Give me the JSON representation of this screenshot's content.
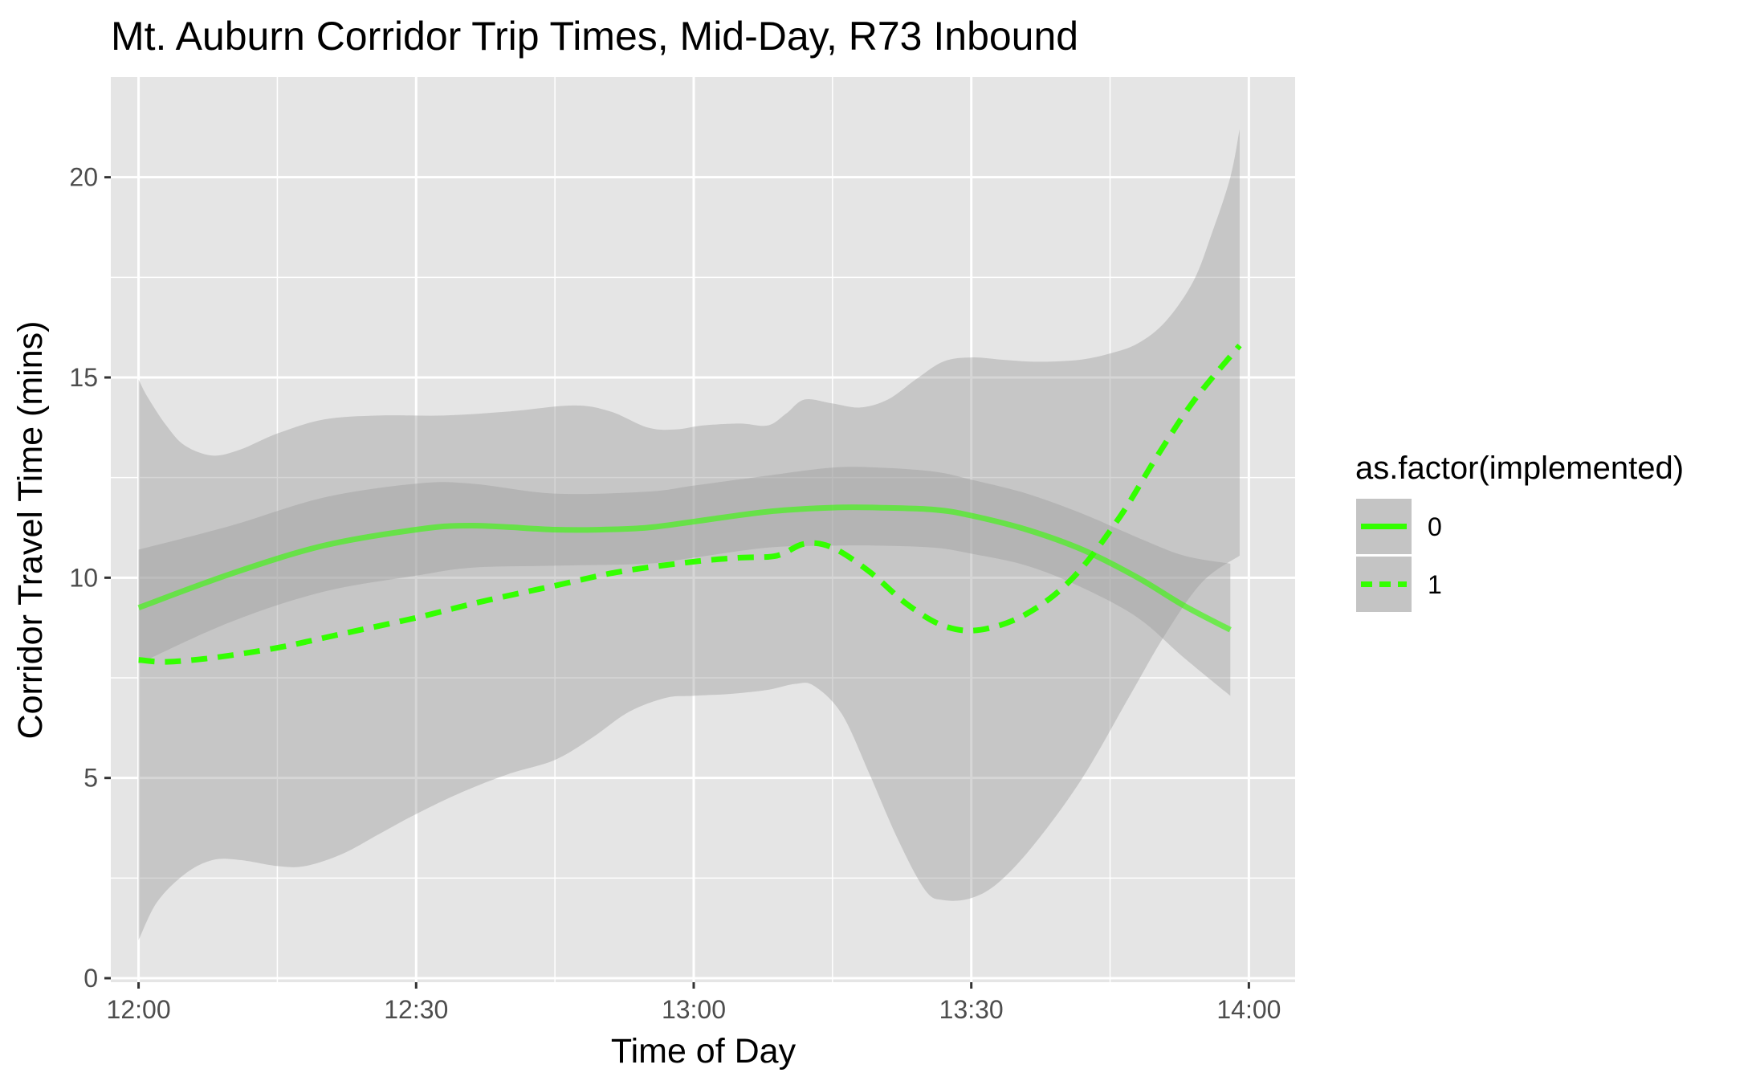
{
  "chart_data": {
    "type": "line",
    "title": "Mt. Auburn Corridor Trip Times, Mid-Day, R73 Inbound",
    "xlabel": "Time of Day",
    "ylabel": "Corridor Travel Time (mins)",
    "x_ticks": [
      "12:00",
      "12:30",
      "13:00",
      "13:30",
      "14:00"
    ],
    "y_ticks": [
      "0",
      "5",
      "10",
      "15",
      "20"
    ],
    "xlim": [
      "11:57",
      "14:05"
    ],
    "ylim": [
      -0.1,
      22.5
    ],
    "grid": true,
    "legend": {
      "title": "as.factor(implemented)",
      "position": "right",
      "entries": [
        "0",
        "1"
      ]
    },
    "series": [
      {
        "name": "0",
        "line_style": "solid",
        "color": "#33ff00",
        "points": [
          [
            "12:00",
            9.25
          ],
          [
            "12:10",
            10.1
          ],
          [
            "12:20",
            10.8
          ],
          [
            "12:30",
            11.2
          ],
          [
            "12:36",
            11.3
          ],
          [
            "12:45",
            11.2
          ],
          [
            "12:50",
            11.2
          ],
          [
            "12:55",
            11.25
          ],
          [
            "13:00",
            11.4
          ],
          [
            "13:08",
            11.65
          ],
          [
            "13:15",
            11.75
          ],
          [
            "13:20",
            11.75
          ],
          [
            "13:26",
            11.7
          ],
          [
            "13:30",
            11.55
          ],
          [
            "13:36",
            11.2
          ],
          [
            "13:42",
            10.7
          ],
          [
            "13:48",
            10.0
          ],
          [
            "13:53",
            9.3
          ],
          [
            "13:58",
            8.7
          ]
        ],
        "band_upper": [
          [
            "12:00",
            10.7
          ],
          [
            "12:10",
            11.3
          ],
          [
            "12:20",
            12.0
          ],
          [
            "12:30",
            12.35
          ],
          [
            "12:36",
            12.35
          ],
          [
            "12:45",
            12.1
          ],
          [
            "12:55",
            12.15
          ],
          [
            "13:00",
            12.3
          ],
          [
            "13:08",
            12.55
          ],
          [
            "13:15",
            12.75
          ],
          [
            "13:20",
            12.75
          ],
          [
            "13:26",
            12.65
          ],
          [
            "13:30",
            12.45
          ],
          [
            "13:36",
            12.1
          ],
          [
            "13:42",
            11.6
          ],
          [
            "13:48",
            11.0
          ],
          [
            "13:53",
            10.55
          ],
          [
            "13:58",
            10.35
          ]
        ],
        "band_lower": [
          [
            "12:00",
            7.85
          ],
          [
            "12:10",
            8.9
          ],
          [
            "12:20",
            9.65
          ],
          [
            "12:30",
            10.05
          ],
          [
            "12:36",
            10.25
          ],
          [
            "12:45",
            10.3
          ],
          [
            "12:55",
            10.35
          ],
          [
            "13:00",
            10.5
          ],
          [
            "13:08",
            10.75
          ],
          [
            "13:15",
            10.8
          ],
          [
            "13:20",
            10.8
          ],
          [
            "13:26",
            10.75
          ],
          [
            "13:30",
            10.6
          ],
          [
            "13:36",
            10.3
          ],
          [
            "13:42",
            9.75
          ],
          [
            "13:48",
            9.0
          ],
          [
            "13:53",
            8.0
          ],
          [
            "13:58",
            7.05
          ]
        ]
      },
      {
        "name": "1",
        "line_style": "dashed",
        "color": "#33ff00",
        "points": [
          [
            "12:00",
            7.95
          ],
          [
            "12:03",
            7.9
          ],
          [
            "12:08",
            8.0
          ],
          [
            "12:15",
            8.25
          ],
          [
            "12:22",
            8.6
          ],
          [
            "12:30",
            9.0
          ],
          [
            "12:37",
            9.4
          ],
          [
            "12:45",
            9.8
          ],
          [
            "12:52",
            10.15
          ],
          [
            "13:00",
            10.4
          ],
          [
            "13:05",
            10.5
          ],
          [
            "13:09",
            10.55
          ],
          [
            "13:12",
            10.85
          ],
          [
            "13:15",
            10.75
          ],
          [
            "13:19",
            10.15
          ],
          [
            "13:23",
            9.35
          ],
          [
            "13:27",
            8.8
          ],
          [
            "13:31",
            8.7
          ],
          [
            "13:36",
            9.1
          ],
          [
            "13:41",
            10.0
          ],
          [
            "13:46",
            11.5
          ],
          [
            "13:50",
            13.0
          ],
          [
            "13:54",
            14.4
          ],
          [
            "13:59",
            15.8
          ]
        ],
        "band_upper": [
          [
            "12:00",
            14.95
          ],
          [
            "12:01",
            14.5
          ],
          [
            "12:03",
            13.8
          ],
          [
            "12:05",
            13.3
          ],
          [
            "12:08",
            13.05
          ],
          [
            "12:11",
            13.2
          ],
          [
            "12:15",
            13.6
          ],
          [
            "12:20",
            13.95
          ],
          [
            "12:26",
            14.05
          ],
          [
            "12:33",
            14.05
          ],
          [
            "12:40",
            14.15
          ],
          [
            "12:47",
            14.3
          ],
          [
            "12:51",
            14.15
          ],
          [
            "12:55",
            13.75
          ],
          [
            "12:58",
            13.7
          ],
          [
            "13:01",
            13.8
          ],
          [
            "13:05",
            13.85
          ],
          [
            "13:08",
            13.8
          ],
          [
            "13:10",
            14.1
          ],
          [
            "13:12",
            14.45
          ],
          [
            "13:15",
            14.35
          ],
          [
            "13:18",
            14.25
          ],
          [
            "13:21",
            14.45
          ],
          [
            "13:24",
            14.95
          ],
          [
            "13:27",
            15.4
          ],
          [
            "13:30",
            15.5
          ],
          [
            "13:33",
            15.45
          ],
          [
            "13:36",
            15.4
          ],
          [
            "13:39",
            15.4
          ],
          [
            "13:42",
            15.45
          ],
          [
            "13:45",
            15.6
          ],
          [
            "13:48",
            15.85
          ],
          [
            "13:51",
            16.4
          ],
          [
            "13:54",
            17.4
          ],
          [
            "13:56",
            18.6
          ],
          [
            "13:58",
            20.0
          ],
          [
            "13:59",
            21.2
          ]
        ],
        "band_lower": [
          [
            "12:00",
            0.95
          ],
          [
            "12:02",
            1.9
          ],
          [
            "12:05",
            2.6
          ],
          [
            "12:08",
            2.95
          ],
          [
            "12:11",
            2.95
          ],
          [
            "12:15",
            2.8
          ],
          [
            "12:18",
            2.8
          ],
          [
            "12:22",
            3.1
          ],
          [
            "12:26",
            3.6
          ],
          [
            "12:30",
            4.1
          ],
          [
            "12:35",
            4.65
          ],
          [
            "12:40",
            5.1
          ],
          [
            "12:45",
            5.45
          ],
          [
            "12:49",
            6.0
          ],
          [
            "12:53",
            6.65
          ],
          [
            "12:57",
            7.0
          ],
          [
            "13:00",
            7.05
          ],
          [
            "13:04",
            7.1
          ],
          [
            "13:08",
            7.2
          ],
          [
            "13:11",
            7.35
          ],
          [
            "13:13",
            7.3
          ],
          [
            "13:16",
            6.6
          ],
          [
            "13:19",
            5.1
          ],
          [
            "13:22",
            3.5
          ],
          [
            "13:25",
            2.2
          ],
          [
            "13:27",
            1.95
          ],
          [
            "13:30",
            2.0
          ],
          [
            "13:33",
            2.4
          ],
          [
            "13:37",
            3.4
          ],
          [
            "13:42",
            5.0
          ],
          [
            "13:47",
            7.0
          ],
          [
            "13:51",
            8.6
          ],
          [
            "13:55",
            9.9
          ],
          [
            "13:59",
            10.55
          ]
        ]
      }
    ]
  },
  "style": {
    "panel_bg": "#e5e5e5",
    "grid_major": "#ffffff",
    "band_fill": "#999999",
    "line_color": "#33ff00"
  }
}
